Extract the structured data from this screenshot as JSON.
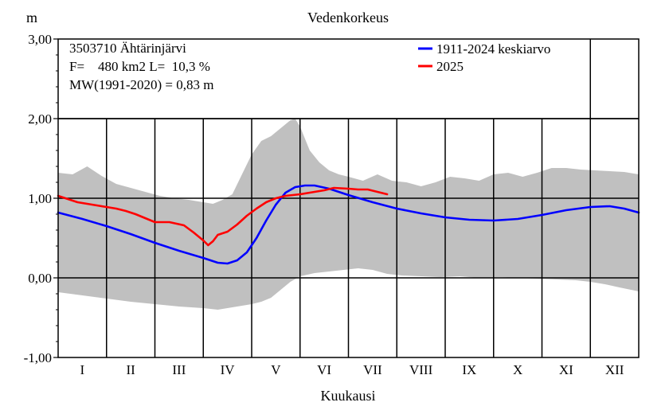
{
  "chart_data": {
    "type": "area",
    "title": "Vedenkorkeus",
    "ylabel": "m",
    "xlabel": "Kuukausi",
    "ylim": [
      -1.0,
      3.0
    ],
    "xlim": [
      0,
      12
    ],
    "x_unit": "month",
    "yticks": [
      -1.0,
      0.0,
      1.0,
      2.0,
      3.0
    ],
    "ytick_labels": [
      "-1,00",
      "0,00",
      "1,00",
      "2,00",
      "3,00"
    ],
    "month_labels": [
      "I",
      "II",
      "III",
      "IV",
      "V",
      "VI",
      "VII",
      "VIII",
      "IX",
      "X",
      "XI",
      "XII"
    ],
    "grid": true,
    "legend_position": "top-right",
    "info_lines": [
      "3503710 Ähtärinjärvi",
      "F=    480 km2 L=  10,3 %",
      "MW(1991-2020) = 0,83 m"
    ],
    "range_band": {
      "color": "#c0c0c0",
      "upper": [
        [
          0.0,
          1.32
        ],
        [
          0.3,
          1.3
        ],
        [
          0.6,
          1.4
        ],
        [
          0.9,
          1.28
        ],
        [
          1.2,
          1.18
        ],
        [
          1.5,
          1.13
        ],
        [
          1.8,
          1.08
        ],
        [
          2.1,
          1.03
        ],
        [
          2.4,
          1.0
        ],
        [
          2.7,
          0.98
        ],
        [
          3.0,
          0.95
        ],
        [
          3.2,
          0.93
        ],
        [
          3.4,
          0.98
        ],
        [
          3.6,
          1.05
        ],
        [
          3.8,
          1.3
        ],
        [
          4.0,
          1.55
        ],
        [
          4.2,
          1.72
        ],
        [
          4.4,
          1.78
        ],
        [
          4.6,
          1.88
        ],
        [
          4.8,
          1.98
        ],
        [
          4.9,
          2.0
        ],
        [
          5.0,
          1.9
        ],
        [
          5.2,
          1.6
        ],
        [
          5.4,
          1.45
        ],
        [
          5.6,
          1.35
        ],
        [
          5.8,
          1.3
        ],
        [
          6.0,
          1.27
        ],
        [
          6.3,
          1.22
        ],
        [
          6.6,
          1.3
        ],
        [
          6.9,
          1.22
        ],
        [
          7.2,
          1.2
        ],
        [
          7.5,
          1.15
        ],
        [
          7.8,
          1.2
        ],
        [
          8.1,
          1.27
        ],
        [
          8.4,
          1.25
        ],
        [
          8.7,
          1.22
        ],
        [
          9.0,
          1.3
        ],
        [
          9.3,
          1.32
        ],
        [
          9.6,
          1.27
        ],
        [
          9.9,
          1.32
        ],
        [
          10.2,
          1.38
        ],
        [
          10.5,
          1.38
        ],
        [
          10.8,
          1.36
        ],
        [
          11.1,
          1.35
        ],
        [
          11.4,
          1.34
        ],
        [
          11.7,
          1.33
        ],
        [
          12.0,
          1.3
        ]
      ],
      "lower": [
        [
          0.0,
          -0.18
        ],
        [
          0.5,
          -0.22
        ],
        [
          1.0,
          -0.26
        ],
        [
          1.5,
          -0.3
        ],
        [
          2.0,
          -0.33
        ],
        [
          2.5,
          -0.36
        ],
        [
          3.0,
          -0.38
        ],
        [
          3.3,
          -0.4
        ],
        [
          3.6,
          -0.37
        ],
        [
          3.8,
          -0.35
        ],
        [
          4.0,
          -0.33
        ],
        [
          4.2,
          -0.3
        ],
        [
          4.4,
          -0.25
        ],
        [
          4.6,
          -0.15
        ],
        [
          4.8,
          -0.05
        ],
        [
          5.0,
          0.02
        ],
        [
          5.3,
          0.06
        ],
        [
          5.6,
          0.08
        ],
        [
          5.9,
          0.1
        ],
        [
          6.2,
          0.12
        ],
        [
          6.5,
          0.1
        ],
        [
          6.8,
          0.05
        ],
        [
          7.1,
          0.03
        ],
        [
          7.5,
          0.02
        ],
        [
          7.9,
          0.01
        ],
        [
          8.3,
          0.02
        ],
        [
          8.7,
          0.0
        ],
        [
          9.1,
          0.01
        ],
        [
          9.5,
          0.0
        ],
        [
          9.9,
          -0.01
        ],
        [
          10.3,
          -0.02
        ],
        [
          10.7,
          -0.03
        ],
        [
          11.0,
          -0.05
        ],
        [
          11.3,
          -0.08
        ],
        [
          11.6,
          -0.12
        ],
        [
          12.0,
          -0.17
        ]
      ]
    },
    "series": [
      {
        "name": "1911-2024 keskiarvo",
        "color": "#0000ff",
        "points": [
          [
            0.0,
            0.82
          ],
          [
            0.5,
            0.74
          ],
          [
            1.0,
            0.65
          ],
          [
            1.5,
            0.55
          ],
          [
            2.0,
            0.44
          ],
          [
            2.5,
            0.34
          ],
          [
            3.0,
            0.25
          ],
          [
            3.3,
            0.19
          ],
          [
            3.5,
            0.18
          ],
          [
            3.7,
            0.22
          ],
          [
            3.9,
            0.32
          ],
          [
            4.1,
            0.5
          ],
          [
            4.3,
            0.72
          ],
          [
            4.5,
            0.92
          ],
          [
            4.7,
            1.07
          ],
          [
            4.9,
            1.14
          ],
          [
            5.1,
            1.16
          ],
          [
            5.3,
            1.16
          ],
          [
            5.6,
            1.12
          ],
          [
            6.0,
            1.04
          ],
          [
            6.5,
            0.95
          ],
          [
            7.0,
            0.87
          ],
          [
            7.5,
            0.81
          ],
          [
            8.0,
            0.76
          ],
          [
            8.5,
            0.73
          ],
          [
            9.0,
            0.72
          ],
          [
            9.5,
            0.74
          ],
          [
            10.0,
            0.79
          ],
          [
            10.5,
            0.85
          ],
          [
            11.0,
            0.89
          ],
          [
            11.4,
            0.9
          ],
          [
            11.7,
            0.87
          ],
          [
            12.0,
            0.82
          ]
        ]
      },
      {
        "name": "2025",
        "color": "#ff0000",
        "points": [
          [
            0.0,
            1.03
          ],
          [
            0.2,
            0.99
          ],
          [
            0.4,
            0.95
          ],
          [
            0.7,
            0.92
          ],
          [
            1.0,
            0.89
          ],
          [
            1.2,
            0.87
          ],
          [
            1.4,
            0.84
          ],
          [
            1.6,
            0.8
          ],
          [
            1.8,
            0.75
          ],
          [
            2.0,
            0.7
          ],
          [
            2.3,
            0.7
          ],
          [
            2.6,
            0.66
          ],
          [
            2.8,
            0.57
          ],
          [
            3.0,
            0.47
          ],
          [
            3.1,
            0.41
          ],
          [
            3.2,
            0.46
          ],
          [
            3.3,
            0.54
          ],
          [
            3.5,
            0.58
          ],
          [
            3.7,
            0.67
          ],
          [
            3.9,
            0.78
          ],
          [
            4.1,
            0.87
          ],
          [
            4.3,
            0.95
          ],
          [
            4.5,
            1.0
          ],
          [
            4.7,
            1.03
          ],
          [
            5.0,
            1.05
          ],
          [
            5.3,
            1.08
          ],
          [
            5.5,
            1.1
          ],
          [
            5.7,
            1.13
          ],
          [
            6.0,
            1.12
          ],
          [
            6.2,
            1.11
          ],
          [
            6.4,
            1.11
          ],
          [
            6.6,
            1.08
          ],
          [
            6.8,
            1.05
          ]
        ]
      }
    ]
  }
}
